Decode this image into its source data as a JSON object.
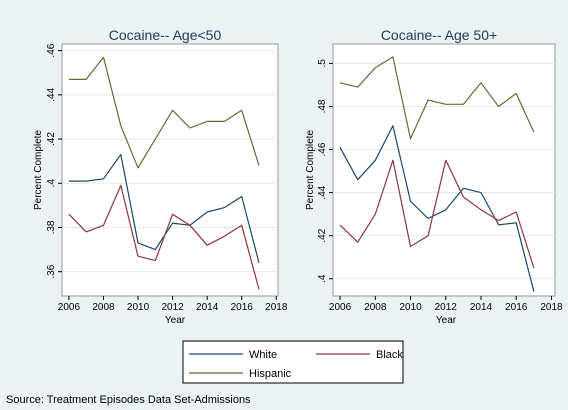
{
  "chart_data": [
    {
      "type": "line",
      "title": "Cocaine-- Age<50",
      "xlabel": "Year",
      "ylabel": "Percent Complete",
      "xlim": [
        2005.6,
        2018.1
      ],
      "ylim": [
        0.349,
        0.463
      ],
      "xticks": [
        2006,
        2008,
        2010,
        2012,
        2014,
        2016,
        2018
      ],
      "xtick_labels": [
        "2006",
        "2008",
        "2010",
        "2012",
        "2014",
        "2016",
        "2018"
      ],
      "yticks": [
        0.36,
        0.38,
        0.4,
        0.42,
        0.44,
        0.46
      ],
      "ytick_labels": [
        ".36",
        ".38",
        ".4",
        ".42",
        ".44",
        ".46"
      ],
      "grid": true,
      "x": [
        2006,
        2007,
        2008,
        2009,
        2010,
        2011,
        2012,
        2013,
        2014,
        2015,
        2016,
        2017
      ],
      "series": [
        {
          "name": "White",
          "color": "#1a476f",
          "values": [
            0.401,
            0.401,
            0.402,
            0.413,
            0.373,
            0.37,
            0.382,
            0.381,
            0.387,
            0.389,
            0.394,
            0.364
          ]
        },
        {
          "name": "Black",
          "color": "#90353b",
          "values": [
            0.386,
            0.378,
            0.381,
            0.399,
            0.367,
            0.365,
            0.386,
            0.381,
            0.372,
            0.376,
            0.381,
            0.352
          ]
        },
        {
          "name": "Hispanic",
          "color": "#55752f",
          "values": [
            0.447,
            0.447,
            0.457,
            0.426,
            0.407,
            0.42,
            0.433,
            0.425,
            0.428,
            0.428,
            0.433,
            0.408
          ]
        }
      ]
    },
    {
      "type": "line",
      "title": "Cocaine-- Age 50+",
      "xlabel": "Year",
      "ylabel": "Percent Complete",
      "xlim": [
        2005.6,
        2018.2
      ],
      "ylim": [
        0.392,
        0.509
      ],
      "xticks": [
        2006,
        2008,
        2010,
        2012,
        2014,
        2016,
        2018
      ],
      "xtick_labels": [
        "2006",
        "2008",
        "2010",
        "2012",
        "2014",
        "2016",
        "2018"
      ],
      "yticks": [
        0.4,
        0.42,
        0.44,
        0.46,
        0.48,
        0.5
      ],
      "ytick_labels": [
        ".4",
        ".42",
        ".44",
        ".46",
        ".48",
        ".5"
      ],
      "grid": true,
      "x": [
        2006,
        2007,
        2008,
        2009,
        2010,
        2011,
        2012,
        2013,
        2014,
        2015,
        2016,
        2017
      ],
      "series": [
        {
          "name": "White",
          "color": "#1a476f",
          "values": [
            0.461,
            0.446,
            0.455,
            0.471,
            0.436,
            0.428,
            0.432,
            0.442,
            0.44,
            0.425,
            0.426,
            0.394
          ]
        },
        {
          "name": "Black",
          "color": "#90353b",
          "values": [
            0.425,
            0.417,
            0.43,
            0.455,
            0.415,
            0.42,
            0.455,
            0.438,
            0.432,
            0.427,
            0.431,
            0.405
          ]
        },
        {
          "name": "Hispanic",
          "color": "#55752f",
          "values": [
            0.491,
            0.489,
            0.498,
            0.503,
            0.465,
            0.483,
            0.481,
            0.481,
            0.491,
            0.48,
            0.486,
            0.468
          ]
        }
      ]
    }
  ],
  "legend": {
    "placement": "bottom",
    "items": [
      {
        "label": "White",
        "color": "#1a476f"
      },
      {
        "label": "Black",
        "color": "#90353b"
      },
      {
        "label": "Hispanic",
        "color": "#55752f"
      }
    ]
  },
  "source_note": "Source: Treatment Episodes Data Set-Admissions",
  "colors": {
    "plot_background": "#ffffff",
    "outer_background": "#eaf2f3",
    "frame": "#9a9a9a",
    "grid": "#e4eaec"
  }
}
